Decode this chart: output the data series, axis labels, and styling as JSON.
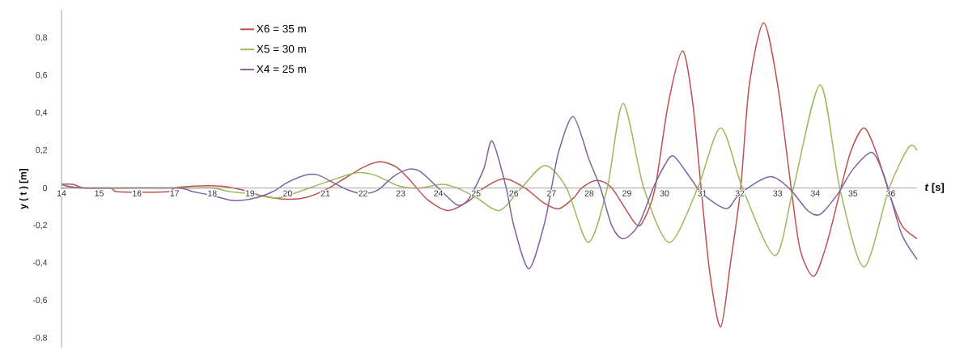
{
  "chart_data": {
    "type": "line",
    "xlabel": "*t* [s]",
    "ylabel": "y ( t ) [m]",
    "xlim": [
      14,
      36.7
    ],
    "ylim": [
      -0.85,
      0.95
    ],
    "xticks": [
      14,
      15,
      16,
      17,
      18,
      19,
      20,
      21,
      22,
      23,
      24,
      25,
      26,
      27,
      28,
      29,
      30,
      31,
      32,
      33,
      34,
      35,
      36
    ],
    "yticks": [
      {
        "value": -0.8,
        "label": "-0,8"
      },
      {
        "value": -0.6,
        "label": "-0,6"
      },
      {
        "value": -0.4,
        "label": "-0,4"
      },
      {
        "value": -0.2,
        "label": "-0,2"
      },
      0,
      {
        "value": 0.2,
        "label": "0,2"
      },
      {
        "value": 0.4,
        "label": "0,4"
      },
      {
        "value": 0.6,
        "label": "0,6"
      },
      {
        "value": 0.8,
        "label": "0,8"
      }
    ],
    "legend": "top left",
    "marker": "none",
    "line_style": "solid",
    "grid": false,
    "series": [
      {
        "name": "X6 = 35 m",
        "color": "#c0504d",
        "x": [
          14.0,
          14.3,
          14.6,
          15.3,
          15.5,
          16.8,
          17.0,
          17.5,
          18.2,
          18.8,
          19.3,
          20.0,
          20.5,
          21.0,
          21.5,
          22.0,
          22.45,
          22.9,
          23.3,
          23.7,
          24.25,
          24.8,
          25.2,
          25.75,
          26.3,
          26.8,
          27.2,
          27.6,
          27.8,
          28.2,
          28.6,
          29.23,
          29.45,
          29.75,
          30.1,
          30.48,
          30.75,
          30.97,
          31.2,
          31.49,
          31.75,
          32.02,
          32.25,
          32.63,
          33.0,
          33.36,
          33.6,
          33.96,
          34.3,
          34.68,
          34.95,
          35.29,
          35.6,
          36.0,
          36.3,
          36.7
        ],
        "values": [
          0.02,
          0.02,
          0.0,
          0.0,
          -0.02,
          -0.02,
          0.0,
          0.01,
          0.01,
          -0.01,
          -0.04,
          -0.06,
          -0.05,
          -0.01,
          0.05,
          0.11,
          0.14,
          0.11,
          0.03,
          -0.06,
          -0.12,
          -0.07,
          0.0,
          0.05,
          0.0,
          -0.08,
          -0.11,
          -0.05,
          0.0,
          0.04,
          0.0,
          -0.19,
          -0.17,
          0.0,
          0.45,
          0.73,
          0.45,
          0.0,
          -0.45,
          -0.74,
          -0.4,
          0.0,
          0.55,
          0.88,
          0.55,
          0.0,
          -0.33,
          -0.47,
          -0.3,
          0.0,
          0.2,
          0.32,
          0.2,
          -0.05,
          -0.2,
          -0.27
        ]
      },
      {
        "name": "X5 = 30 m",
        "color": "#9bbb59",
        "x": [
          14.0,
          14.6,
          17.0,
          17.5,
          18.0,
          18.5,
          19.0,
          19.5,
          19.8,
          20.3,
          21.0,
          21.8,
          22.3,
          22.96,
          23.5,
          24.1,
          24.5,
          25.0,
          25.62,
          26.2,
          26.83,
          27.4,
          27.98,
          28.48,
          28.9,
          29.45,
          30.13,
          30.88,
          31.49,
          32.07,
          32.93,
          33.42,
          34.13,
          34.65,
          35.29,
          35.96,
          36.49,
          36.7
        ],
        "values": [
          0.0,
          0.0,
          0.0,
          0.0,
          0.0,
          -0.02,
          -0.03,
          -0.05,
          -0.05,
          -0.02,
          0.03,
          0.08,
          0.07,
          0.01,
          0.0,
          0.02,
          0.0,
          -0.05,
          -0.12,
          0.0,
          0.12,
          0.0,
          -0.29,
          0.0,
          0.45,
          0.0,
          -0.29,
          0.0,
          0.32,
          0.0,
          -0.36,
          0.0,
          0.55,
          0.0,
          -0.42,
          0.0,
          0.22,
          0.2
        ]
      },
      {
        "name": "X4 = 25 m",
        "color": "#8064a2",
        "x": [
          14.0,
          14.6,
          17.0,
          17.5,
          18.0,
          18.5,
          18.8,
          19.2,
          19.6,
          20.0,
          20.5,
          20.8,
          21.2,
          21.6,
          22.0,
          22.4,
          22.8,
          23.2,
          23.5,
          24.0,
          24.5,
          24.8,
          25.2,
          25.43,
          25.8,
          26.0,
          26.4,
          26.8,
          27.0,
          27.2,
          27.58,
          28.0,
          28.3,
          28.6,
          28.9,
          29.3,
          29.7,
          30.0,
          30.24,
          30.7,
          31.0,
          31.64,
          32.0,
          32.78,
          33.3,
          33.8,
          34.13,
          34.6,
          35.0,
          35.5,
          35.8,
          36.0,
          36.3,
          36.7
        ],
        "values": [
          0.02,
          0.0,
          0.0,
          -0.02,
          -0.04,
          -0.065,
          -0.065,
          -0.05,
          -0.02,
          0.03,
          0.07,
          0.07,
          0.03,
          -0.01,
          -0.03,
          -0.01,
          0.06,
          0.1,
          0.09,
          0.0,
          -0.09,
          -0.06,
          0.1,
          0.25,
          0.0,
          -0.2,
          -0.43,
          -0.2,
          0.0,
          0.2,
          0.38,
          0.15,
          0.0,
          -0.2,
          -0.27,
          -0.2,
          0.0,
          0.12,
          0.17,
          0.05,
          -0.03,
          -0.11,
          -0.03,
          0.06,
          0.0,
          -0.12,
          -0.14,
          -0.03,
          0.1,
          0.19,
          0.08,
          -0.05,
          -0.25,
          -0.38
        ]
      }
    ]
  }
}
